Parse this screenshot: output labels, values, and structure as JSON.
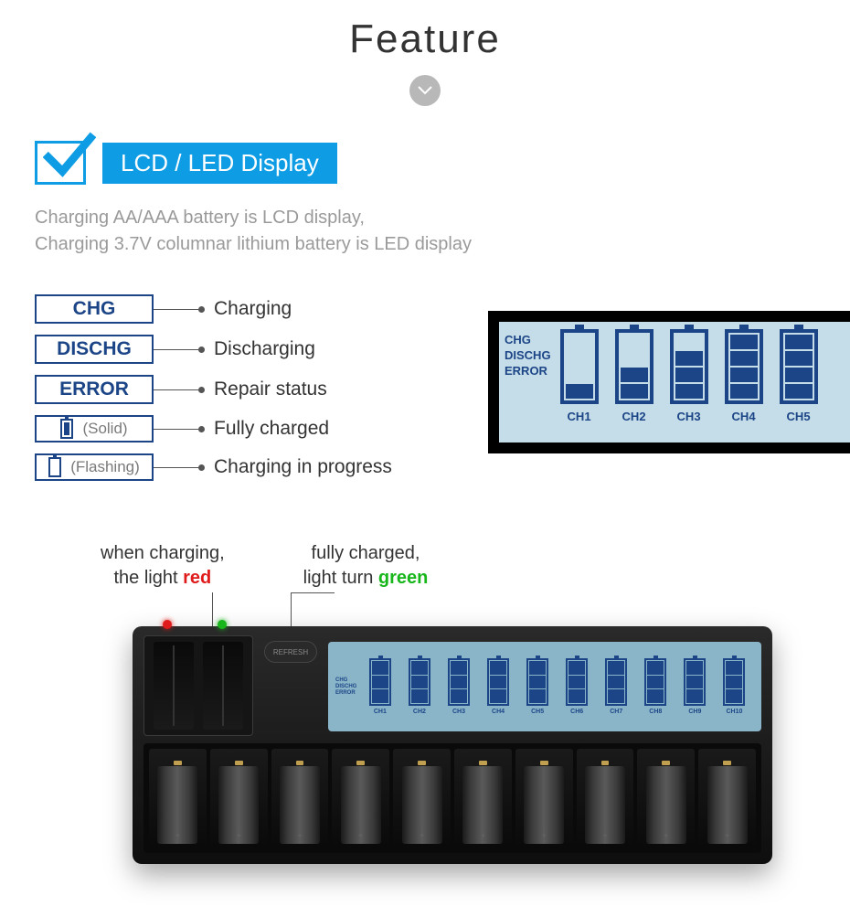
{
  "header": {
    "title": "Feature"
  },
  "badge": {
    "label": "LCD / LED Display"
  },
  "description": {
    "line1": "Charging AA/AAA battery is LCD display,",
    "line2": "Charging 3.7V columnar lithium battery is LED display"
  },
  "legend": {
    "items": [
      {
        "box": "CHG",
        "label": "Charging",
        "kind": "text"
      },
      {
        "box": "DISCHG",
        "label": "Discharging",
        "kind": "text"
      },
      {
        "box": "ERROR",
        "label": "Repair status",
        "kind": "text"
      },
      {
        "box": "(Solid)",
        "label": "Fully charged",
        "kind": "icon-solid"
      },
      {
        "box": "(Flashing)",
        "label": "Charging in progress",
        "kind": "icon-flash"
      }
    ]
  },
  "lcd_panel": {
    "labels": [
      "CHG",
      "DISCHG",
      "ERROR"
    ],
    "channels": [
      {
        "ch": "CH1",
        "bars": 1
      },
      {
        "ch": "CH2",
        "bars": 2
      },
      {
        "ch": "CH3",
        "bars": 3
      },
      {
        "ch": "CH4",
        "bars": 4
      },
      {
        "ch": "CH5",
        "bars": 4
      }
    ],
    "total_bars": 4,
    "colors": {
      "bg": "#c5dde8",
      "fg": "#1c4587",
      "frame": "#000000"
    }
  },
  "callouts": {
    "charging": {
      "pre": "when charging,",
      "post_pre": "the light ",
      "accent": "red"
    },
    "full": {
      "pre": "fully charged,",
      "post_pre": "light turn ",
      "accent": "green"
    }
  },
  "device": {
    "refresh_label": "REFRESH",
    "lcd_labels": [
      "CHG",
      "DISCHG",
      "ERROR"
    ],
    "lcd_channels": [
      "CH1",
      "CH2",
      "CH3",
      "CH4",
      "CH5",
      "CH6",
      "CH7",
      "CH8",
      "CH9",
      "CH10"
    ],
    "aa_slots": 10,
    "lithium_slots": 2,
    "led_colors": {
      "charging": "#e01b1b",
      "full": "#17b61a"
    }
  },
  "colors": {
    "accent_blue": "#0e9de5",
    "deep_blue": "#1c4587",
    "grey_text": "#9a9a9a",
    "red": "#e01b1b",
    "green": "#17b61a"
  }
}
